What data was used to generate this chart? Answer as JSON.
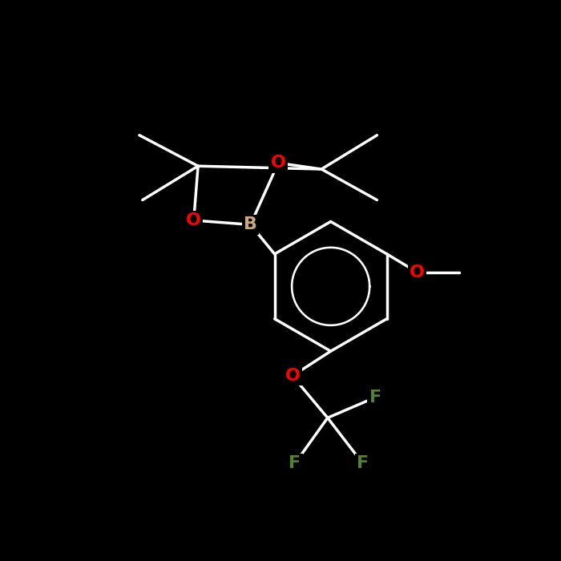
{
  "background_color": "#000000",
  "bond_color": "#ffffff",
  "atom_colors": {
    "O": "#ff0000",
    "B": "#c8a882",
    "F": "#548235",
    "C": "#ffffff",
    "H": "#ffffff"
  },
  "bond_width": 2.5,
  "figsize": [
    7.0,
    7.0
  ],
  "dpi": 100,
  "font_size": 16
}
